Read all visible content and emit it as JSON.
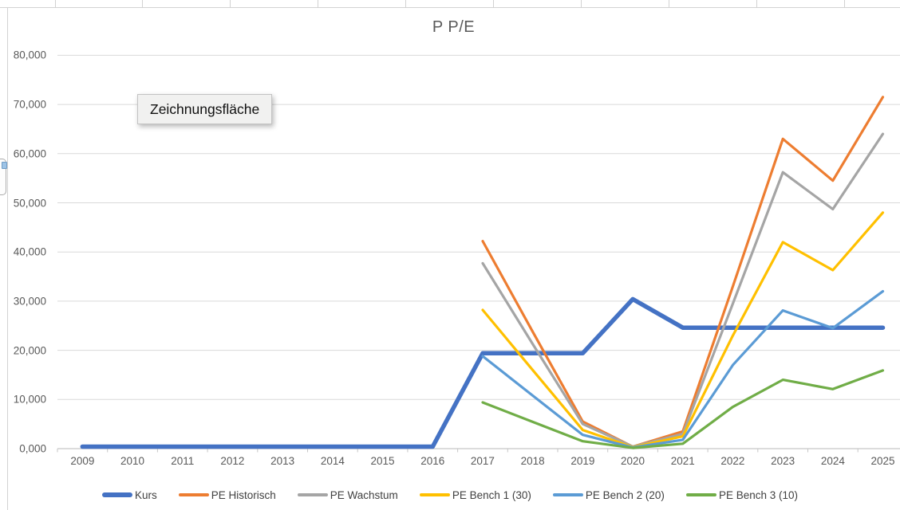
{
  "chart": {
    "title": "P P/E",
    "tooltip_label": "Zeichnungsfläche",
    "y_axis": {
      "ticks": [
        "0,000",
        "10,000",
        "20,000",
        "30,000",
        "40,000",
        "50,000",
        "60,000",
        "70,000",
        "80,000"
      ]
    },
    "colors": {
      "gridline": "#d9d9d9",
      "axis_line": "#c6c6c6",
      "sheet_line": "#d2d2d2",
      "title_text": "#595959",
      "axis_text": "#595959"
    }
  },
  "chart_data": {
    "type": "line",
    "title": "P P/E",
    "categories": [
      "2009",
      "2010",
      "2011",
      "2012",
      "2013",
      "2014",
      "2015",
      "2016",
      "2017",
      "2018",
      "2019",
      "2020",
      "2021",
      "2022",
      "2023",
      "2024",
      "2025"
    ],
    "series": [
      {
        "name": "Kurs",
        "color": "#4472C4",
        "thick": true,
        "values": [
          400,
          400,
          400,
          400,
          400,
          400,
          400,
          400,
          19400,
          19400,
          19400,
          30400,
          24600,
          24600,
          24600,
          24600,
          24600
        ]
      },
      {
        "name": "PE Historisch",
        "color": "#ED7D31",
        "thick": false,
        "values": [
          null,
          null,
          null,
          null,
          null,
          null,
          null,
          null,
          42200,
          23800,
          5500,
          400,
          3500,
          33000,
          63000,
          54500,
          71500
        ]
      },
      {
        "name": "PE Wachstum",
        "color": "#A5A5A5",
        "thick": false,
        "values": [
          null,
          null,
          null,
          null,
          null,
          null,
          null,
          null,
          37700,
          21300,
          5000,
          400,
          3000,
          29500,
          56200,
          48700,
          64000
        ]
      },
      {
        "name": "PE Bench 1 (30)",
        "color": "#FFC000",
        "thick": false,
        "values": [
          null,
          null,
          null,
          null,
          null,
          null,
          null,
          null,
          28200,
          16000,
          3800,
          300,
          2500,
          23000,
          42000,
          36300,
          48000
        ]
      },
      {
        "name": "PE Bench 2 (20)",
        "color": "#5B9BD5",
        "thick": false,
        "values": [
          null,
          null,
          null,
          null,
          null,
          null,
          null,
          null,
          18800,
          10800,
          2800,
          250,
          1800,
          17000,
          28100,
          24500,
          32000
        ]
      },
      {
        "name": "PE Bench 3 (10)",
        "color": "#70AD47",
        "thick": false,
        "values": [
          null,
          null,
          null,
          null,
          null,
          null,
          null,
          null,
          9400,
          5450,
          1500,
          150,
          1000,
          8500,
          14000,
          12100,
          15900
        ]
      }
    ],
    "ylim": [
      0,
      80000
    ],
    "y_tick_step": 10000,
    "xlabel": "",
    "ylabel": "",
    "grid": true,
    "legend_position": "bottom"
  }
}
